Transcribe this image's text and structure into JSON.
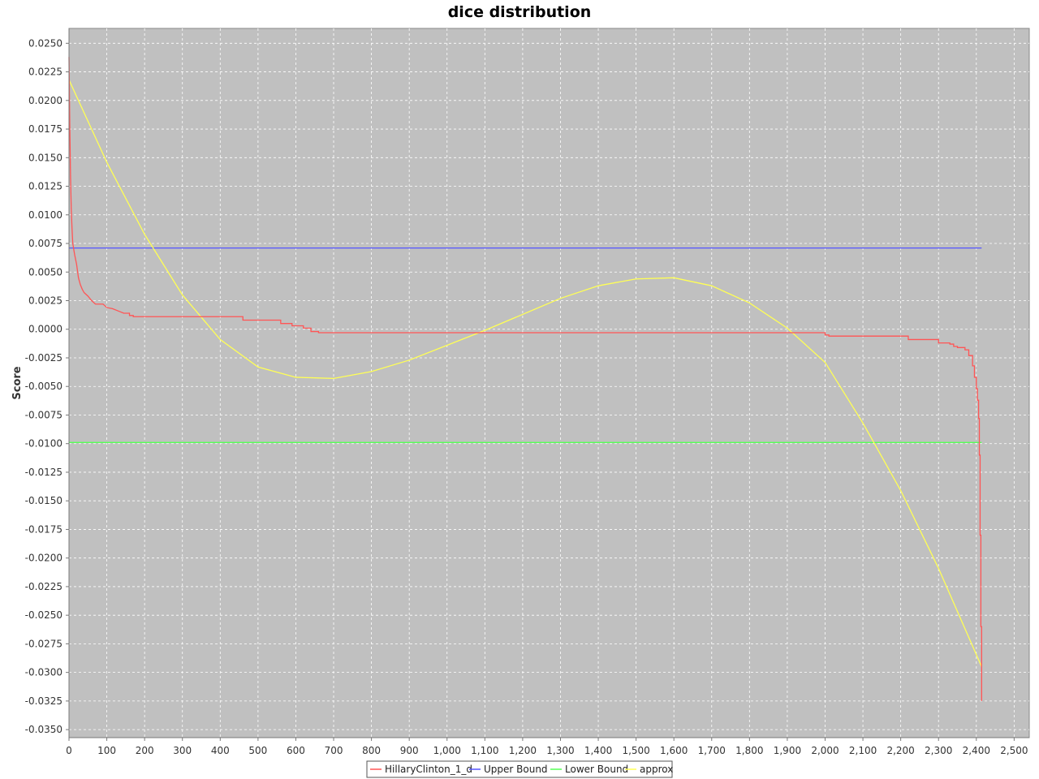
{
  "chart_data": {
    "type": "line",
    "title": "dice distribution",
    "xlabel": "",
    "ylabel": "Score",
    "xlim": [
      0,
      2540
    ],
    "ylim": [
      -0.0357,
      0.0263
    ],
    "x_ticks": [
      0,
      100,
      200,
      300,
      400,
      500,
      600,
      700,
      800,
      900,
      1000,
      1100,
      1200,
      1300,
      1400,
      1500,
      1600,
      1700,
      1800,
      1900,
      2000,
      2100,
      2200,
      2300,
      2400,
      2500
    ],
    "x_tick_labels": [
      "0",
      "100",
      "200",
      "300",
      "400",
      "500",
      "600",
      "700",
      "800",
      "900",
      "1,000",
      "1,100",
      "1,200",
      "1,300",
      "1,400",
      "1,500",
      "1,600",
      "1,700",
      "1,800",
      "1,900",
      "2,000",
      "2,100",
      "2,200",
      "2,300",
      "2,400",
      "2,500"
    ],
    "y_ticks": [
      0.025,
      0.0225,
      0.02,
      0.0175,
      0.015,
      0.0125,
      0.01,
      0.0075,
      0.005,
      0.0025,
      0,
      -0.0025,
      -0.005,
      -0.0075,
      -0.01,
      -0.0125,
      -0.015,
      -0.0175,
      -0.02,
      -0.0225,
      -0.025,
      -0.0275,
      -0.03,
      -0.0325,
      -0.035
    ],
    "y_tick_labels": [
      "0.0250",
      "0.0225",
      "0.0200",
      "0.0175",
      "0.0150",
      "0.0125",
      "0.0100",
      "0.0075",
      "0.0050",
      "0.0025",
      "0.0000",
      "-0.0025",
      "-0.0050",
      "-0.0075",
      "-0.0100",
      "-0.0125",
      "-0.0150",
      "-0.0175",
      "-0.0200",
      "-0.0225",
      "-0.0250",
      "-0.0275",
      "-0.0300",
      "-0.0325",
      "-0.0350"
    ],
    "grid": true,
    "legend_position": "bottom-center",
    "colors": {
      "plot_background": "#c0c0c0",
      "grid": "#ffffff",
      "series_1": "#ff5555",
      "series_2": "#5555ff",
      "series_3": "#55ff55",
      "series_4": "#ffff55"
    },
    "series": [
      {
        "name": "HillaryClinton_1_d",
        "color": "#ff5555",
        "x": [
          0,
          2,
          4,
          6,
          8,
          10,
          15,
          20,
          25,
          30,
          35,
          40,
          50,
          60,
          70,
          90,
          100,
          115,
          130,
          145,
          160,
          170,
          230,
          300,
          400,
          450,
          460,
          540,
          560,
          590,
          620,
          640,
          660,
          1000,
          1500,
          1990,
          2000,
          2010,
          2100,
          2200,
          2220,
          2290,
          2300,
          2330,
          2340,
          2350,
          2370,
          2380,
          2390,
          2395,
          2400,
          2403,
          2406,
          2408,
          2410,
          2412,
          2414
        ],
        "y": [
          0.0238,
          0.018,
          0.0135,
          0.0105,
          0.0088,
          0.0075,
          0.0065,
          0.0057,
          0.0045,
          0.0039,
          0.0035,
          0.0032,
          0.0029,
          0.0025,
          0.0022,
          0.0022,
          0.0019,
          0.0018,
          0.0016,
          0.0014,
          0.0012,
          0.0011,
          0.0011,
          0.0011,
          0.0011,
          0.0011,
          0.0008,
          0.0008,
          0.0005,
          0.0003,
          0.0001,
          -0.0002,
          -0.0003,
          -0.0003,
          -0.0003,
          -0.0003,
          -0.0005,
          -0.0006,
          -0.0006,
          -0.0006,
          -0.0009,
          -0.0009,
          -0.0012,
          -0.0013,
          -0.0015,
          -0.0016,
          -0.0018,
          -0.0023,
          -0.0032,
          -0.0042,
          -0.0052,
          -0.0062,
          -0.0078,
          -0.011,
          -0.018,
          -0.026,
          -0.0325
        ]
      },
      {
        "name": "Upper Bound",
        "color": "#5555ff",
        "x": [
          0,
          2414
        ],
        "y": [
          0.0071,
          0.0071
        ]
      },
      {
        "name": "Lower Bound",
        "color": "#55ff55",
        "x": [
          0,
          2414
        ],
        "y": [
          -0.0099,
          -0.0099
        ]
      },
      {
        "name": "approx",
        "color": "#ffff55",
        "x": [
          0,
          100,
          200,
          300,
          400,
          500,
          600,
          700,
          800,
          900,
          1000,
          1100,
          1200,
          1300,
          1400,
          1500,
          1600,
          1700,
          1800,
          1900,
          2000,
          2100,
          2200,
          2300,
          2414
        ],
        "y": [
          0.0218,
          0.0146,
          0.0083,
          0.003,
          -0.0009,
          -0.0033,
          -0.0042,
          -0.0043,
          -0.0037,
          -0.0027,
          -0.0014,
          -0.0001,
          0.0013,
          0.0027,
          0.0038,
          0.0044,
          0.0045,
          0.0038,
          0.0023,
          0.0001,
          -0.0029,
          -0.0082,
          -0.0141,
          -0.0209,
          -0.0295
        ]
      }
    ]
  }
}
